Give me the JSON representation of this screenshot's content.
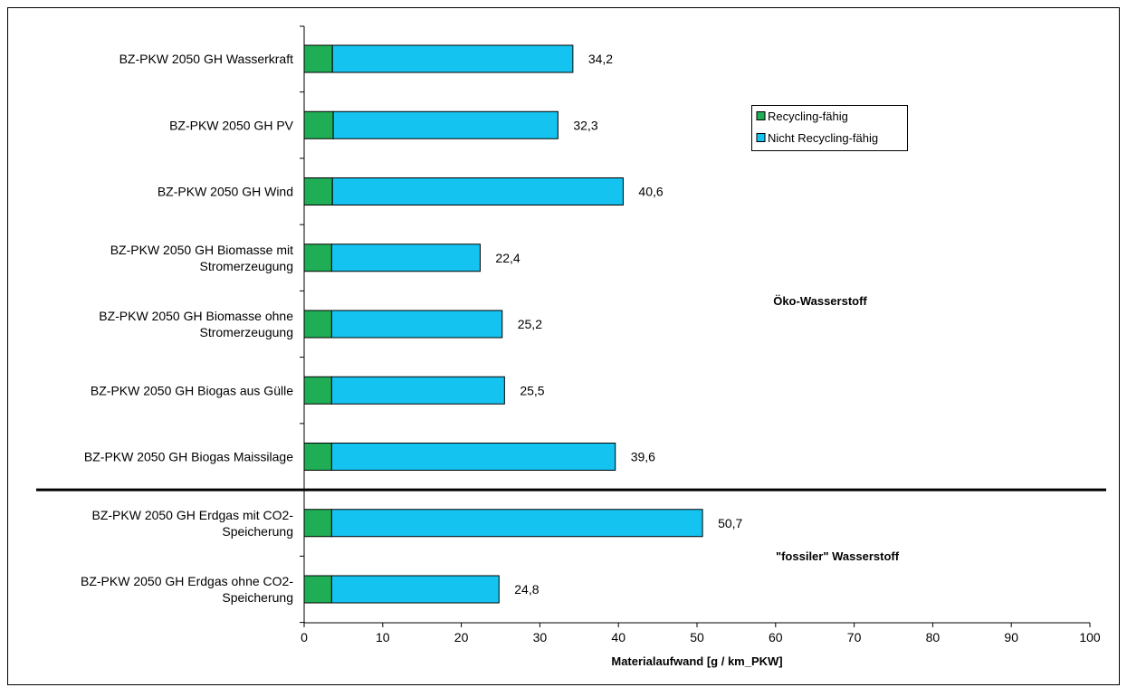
{
  "chart_data": {
    "type": "bar",
    "orientation": "horizontal",
    "stacked": true,
    "categories": [
      [
        "BZ-PKW 2050 GH Wasserkraft"
      ],
      [
        "BZ-PKW 2050 GH PV"
      ],
      [
        "BZ-PKW 2050 GH Wind"
      ],
      [
        "BZ-PKW 2050 GH Biomasse mit",
        "Stromerzeugung"
      ],
      [
        "BZ-PKW 2050 GH Biomasse ohne",
        "Stromerzeugung"
      ],
      [
        "BZ-PKW 2050 GH Biogas aus Gülle"
      ],
      [
        "BZ-PKW 2050 GH Biogas Maissilage"
      ],
      [
        "BZ-PKW 2050 GH Erdgas mit CO2-",
        "Speicherung"
      ],
      [
        "BZ-PKW 2050 GH Erdgas ohne CO2-",
        "Speicherung"
      ]
    ],
    "series": [
      {
        "name": "Recycling-fähig",
        "color": "#1fae55",
        "values": [
          3.6,
          3.7,
          3.6,
          3.5,
          3.5,
          3.5,
          3.5,
          3.5,
          3.5
        ]
      },
      {
        "name": "Nicht Recycling-fähig",
        "color": "#14c3ef",
        "values": [
          30.6,
          28.6,
          37.0,
          18.9,
          21.7,
          22.0,
          36.1,
          47.2,
          21.3
        ]
      }
    ],
    "total_labels": [
      "34,2",
      "32,3",
      "40,6",
      "22,4",
      "25,2",
      "25,5",
      "39,6",
      "50,7",
      "24,8"
    ],
    "xlabel": "Materialaufwand [g / km_PKW]",
    "xlim": [
      0,
      100
    ],
    "xticks": [
      "0",
      "10",
      "20",
      "30",
      "40",
      "50",
      "60",
      "70",
      "80",
      "90",
      "100"
    ],
    "grid": false,
    "legend_position": "top-right",
    "group_annotations": [
      "Öko-Wasserstoff",
      "\"fossiler\" Wasserstoff"
    ],
    "separator_after_index": 6
  }
}
